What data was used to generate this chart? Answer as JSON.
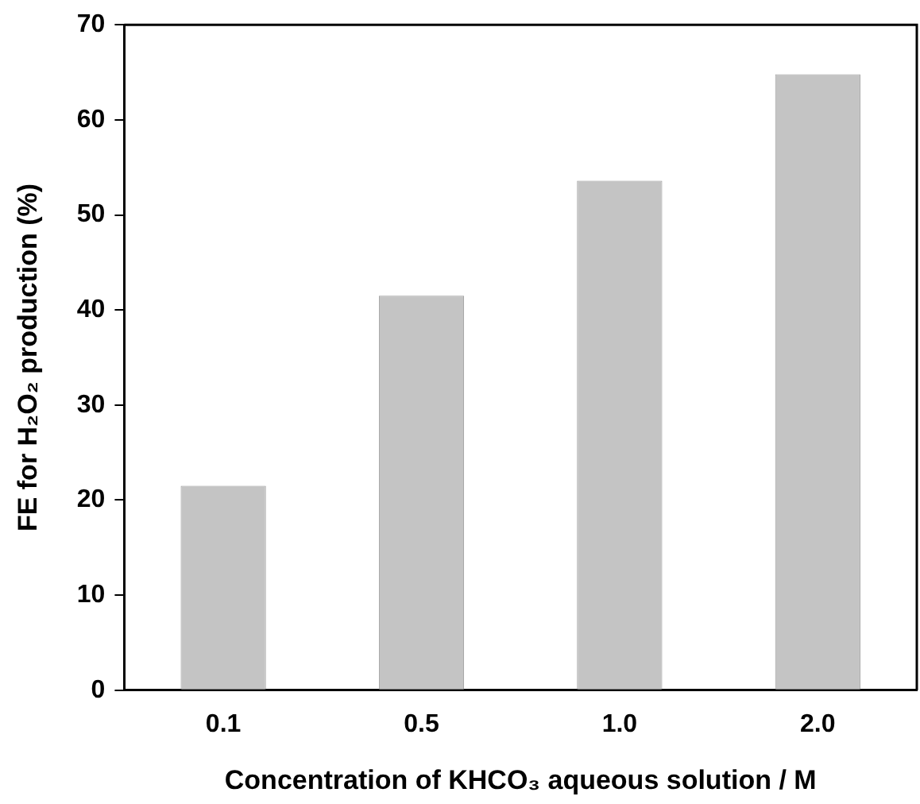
{
  "chart_data": {
    "type": "bar",
    "xlabel": "Concentration of KHCO₃ aqueous solution / M",
    "ylabel": "FE for H₂O₂ production (%)",
    "categories": [
      "0.1",
      "0.5",
      "1.0",
      "2.0"
    ],
    "values": [
      21.5,
      41.5,
      53.6,
      64.8
    ],
    "color": "#c4c4c4",
    "ylim": [
      0,
      70
    ],
    "yticks": [
      0,
      10,
      20,
      30,
      40,
      50,
      60,
      70
    ],
    "grid": false,
    "legend": false
  }
}
